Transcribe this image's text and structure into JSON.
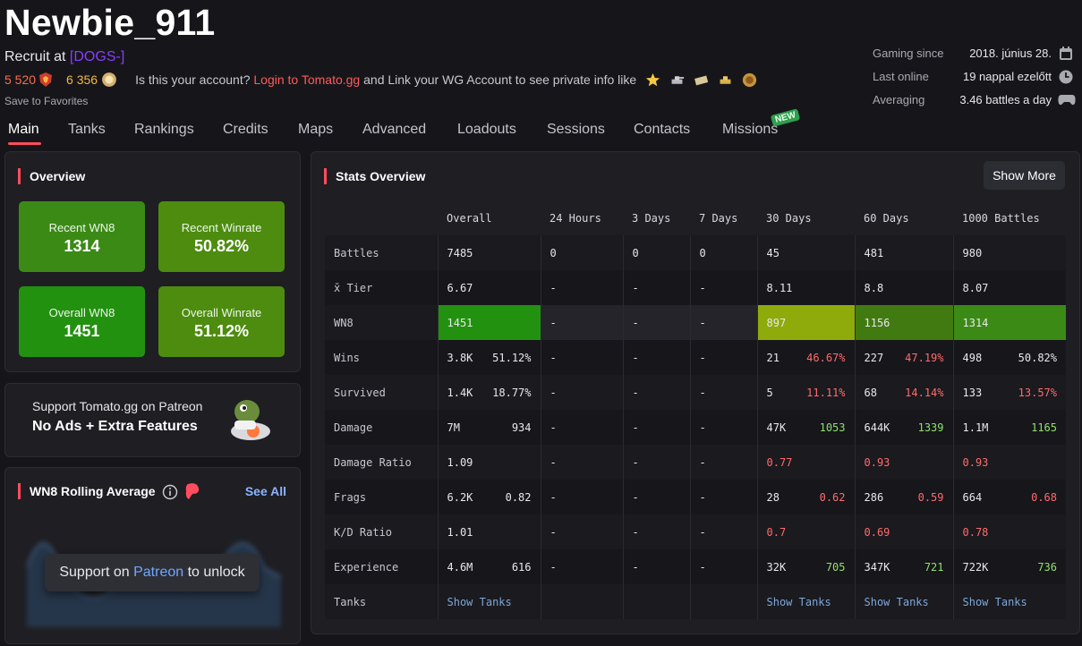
{
  "player": {
    "name": "Newbie_911",
    "recruit_prefix": "Recruit at",
    "clan": "[DOGS-]",
    "rating1": "5 520",
    "rating2": "6 356",
    "claim_text_1": "Is this your account?",
    "claim_link": "Login to Tomato.gg",
    "claim_text_2": "and Link your WG Account to see private info like",
    "save_favorites": "Save to Favorites"
  },
  "meta": {
    "gaming_since_label": "Gaming since",
    "gaming_since_value": "2018. június 28.",
    "last_online_label": "Last online",
    "last_online_value": "19 nappal ezelőtt",
    "averaging_label": "Averaging",
    "averaging_value": "3.46 battles a day"
  },
  "tabs": [
    "Main",
    "Tanks",
    "Rankings",
    "Credits",
    "Maps",
    "Advanced",
    "Loadouts",
    "Sessions",
    "Contacts",
    "Missions"
  ],
  "new_badge": "NEW",
  "overview": {
    "title": "Overview",
    "boxes": [
      {
        "label": "Recent WN8",
        "value": "1314",
        "color": "#3b8a16"
      },
      {
        "label": "Recent Winrate",
        "value": "50.82%",
        "color": "#4d8c0f"
      },
      {
        "label": "Overall WN8",
        "value": "1451",
        "color": "#239110"
      },
      {
        "label": "Overall Winrate",
        "value": "51.12%",
        "color": "#4d8c0f"
      }
    ]
  },
  "patreon": {
    "line1": "Support Tomato.gg on Patreon",
    "line2": "No Ads + Extra Features"
  },
  "rolling": {
    "title": "WN8 Rolling Average",
    "see_all": "See All",
    "unlock_prefix": "Support on",
    "unlock_link": "Patreon",
    "unlock_suffix": "to unlock"
  },
  "stats": {
    "title": "Stats Overview",
    "show_more": "Show More",
    "columns": [
      "",
      "Overall",
      "24 Hours",
      "3 Days",
      "7 Days",
      "30 Days",
      "60 Days",
      "1000 Battles"
    ],
    "rows": [
      {
        "label": "Battles",
        "cells": [
          {
            "a": "7485"
          },
          {
            "a": "0"
          },
          {
            "a": "0"
          },
          {
            "a": "0"
          },
          {
            "a": "45"
          },
          {
            "a": "481"
          },
          {
            "a": "980"
          }
        ]
      },
      {
        "label": "x̄ Tier",
        "cells": [
          {
            "a": "6.67"
          },
          {
            "a": "-"
          },
          {
            "a": "-"
          },
          {
            "a": "-"
          },
          {
            "a": "8.11"
          },
          {
            "a": "8.8"
          },
          {
            "a": "8.07"
          }
        ]
      },
      {
        "label": "WN8",
        "cells": [
          {
            "a": "1451",
            "bg": "#239110"
          },
          {
            "a": "-",
            "bg": "#24242a"
          },
          {
            "a": "-",
            "bg": "#24242a"
          },
          {
            "a": "-",
            "bg": "#24242a"
          },
          {
            "a": "897",
            "bg": "#8faa0b"
          },
          {
            "a": "1156",
            "bg": "#427a12"
          },
          {
            "a": "1314",
            "bg": "#3b8a16"
          }
        ]
      },
      {
        "label": "Wins",
        "cells": [
          {
            "a": "3.8K",
            "b": "51.12%"
          },
          {
            "a": "-"
          },
          {
            "a": "-"
          },
          {
            "a": "-"
          },
          {
            "a": "21",
            "b": "46.67%",
            "bc": "red2"
          },
          {
            "a": "227",
            "b": "47.19%",
            "bc": "red2"
          },
          {
            "a": "498",
            "b": "50.82%"
          }
        ]
      },
      {
        "label": "Survived",
        "cells": [
          {
            "a": "1.4K",
            "b": "18.77%"
          },
          {
            "a": "-"
          },
          {
            "a": "-"
          },
          {
            "a": "-"
          },
          {
            "a": "5",
            "b": "11.11%",
            "bc": "red2"
          },
          {
            "a": "68",
            "b": "14.14%",
            "bc": "red2"
          },
          {
            "a": "133",
            "b": "13.57%",
            "bc": "red2"
          }
        ]
      },
      {
        "label": "Damage",
        "cells": [
          {
            "a": "7M",
            "b": "934"
          },
          {
            "a": "-"
          },
          {
            "a": "-"
          },
          {
            "a": "-"
          },
          {
            "a": "47K",
            "b": "1053",
            "bc": "green"
          },
          {
            "a": "644K",
            "b": "1339",
            "bc": "green"
          },
          {
            "a": "1.1M",
            "b": "1165",
            "bc": "green"
          }
        ]
      },
      {
        "label": "Damage Ratio",
        "cells": [
          {
            "a": "1.09"
          },
          {
            "a": "-"
          },
          {
            "a": "-"
          },
          {
            "a": "-"
          },
          {
            "a": "0.77",
            "ac": "red2"
          },
          {
            "a": "0.93",
            "ac": "red2"
          },
          {
            "a": "0.93",
            "ac": "red2"
          }
        ]
      },
      {
        "label": "Frags",
        "cells": [
          {
            "a": "6.2K",
            "b": "0.82"
          },
          {
            "a": "-"
          },
          {
            "a": "-"
          },
          {
            "a": "-"
          },
          {
            "a": "28",
            "b": "0.62",
            "bc": "red2"
          },
          {
            "a": "286",
            "b": "0.59",
            "bc": "red2"
          },
          {
            "a": "664",
            "b": "0.68",
            "bc": "red2"
          }
        ]
      },
      {
        "label": "K/D Ratio",
        "cells": [
          {
            "a": "1.01"
          },
          {
            "a": "-"
          },
          {
            "a": "-"
          },
          {
            "a": "-"
          },
          {
            "a": "0.7",
            "ac": "red2"
          },
          {
            "a": "0.69",
            "ac": "red2"
          },
          {
            "a": "0.78",
            "ac": "red2"
          }
        ]
      },
      {
        "label": "Experience",
        "cells": [
          {
            "a": "4.6M",
            "b": "616"
          },
          {
            "a": "-"
          },
          {
            "a": "-"
          },
          {
            "a": "-"
          },
          {
            "a": "32K",
            "b": "705",
            "bc": "green"
          },
          {
            "a": "347K",
            "b": "721",
            "bc": "green"
          },
          {
            "a": "722K",
            "b": "736",
            "bc": "green"
          }
        ]
      },
      {
        "label": "Tanks",
        "cells": [
          {
            "a": "Show Tanks",
            "link": true
          },
          {
            "a": ""
          },
          {
            "a": ""
          },
          {
            "a": ""
          },
          {
            "a": "Show Tanks",
            "link": true
          },
          {
            "a": "Show Tanks",
            "link": true
          },
          {
            "a": "Show Tanks",
            "link": true
          }
        ]
      }
    ]
  },
  "colors": {
    "accent": "#ff4d5e",
    "background": "#16161a",
    "panel": "#1e1e23"
  }
}
